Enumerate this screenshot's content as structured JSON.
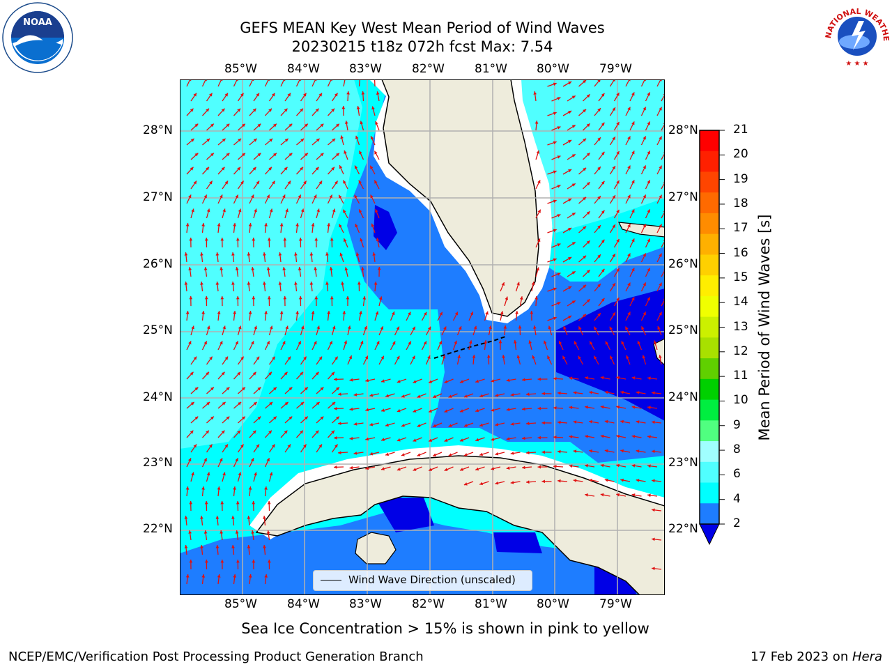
{
  "title": {
    "line1": "GEFS MEAN Key West Mean Period of Wind Waves",
    "line2": "20230215 t18z 072h fcst   Max: 7.54"
  },
  "logos": {
    "left": "NOAA",
    "right_text": "NATIONAL WEATHER SERVICE"
  },
  "map": {
    "lon_labels": [
      "85°W",
      "84°W",
      "83°W",
      "82°W",
      "81°W",
      "80°W",
      "79°W"
    ],
    "lat_labels": [
      "28°N",
      "27°N",
      "26°N",
      "25°N",
      "24°N",
      "23°N",
      "22°N"
    ],
    "extent": {
      "lon_min": -86.0,
      "lon_max": -78.3,
      "lat_min": 21.0,
      "lat_max": 28.8
    },
    "colors": {
      "land": "#eeecdc",
      "c2_4": "#1e7dff",
      "c4_6": "#00ffff",
      "c6_8": "#50ffff",
      "lt2": "#0000e6",
      "arrow": "#e01010",
      "grid": "#b0b0b0"
    }
  },
  "legend": {
    "label": "Wind Wave Direction (unscaled)"
  },
  "colorbar": {
    "title": "Mean Period of Wind Waves [s]",
    "ticks": [
      "21",
      "20",
      "19",
      "18",
      "17",
      "16",
      "15",
      "14",
      "13",
      "12",
      "11",
      "10",
      "9",
      "8",
      "6",
      "4",
      "2"
    ],
    "colors": [
      "#ff0000",
      "#ff2000",
      "#ff4500",
      "#ff6a00",
      "#ff8c00",
      "#ffb000",
      "#ffd000",
      "#ffee00",
      "#f0ff00",
      "#ccf000",
      "#a8e000",
      "#60d000",
      "#00d000",
      "#00ee40",
      "#50ff80",
      "#a0ffff",
      "#50ffff",
      "#00ffff",
      "#1e7dff"
    ],
    "under_color": "#0000e6"
  },
  "note": "Sea Ice Concentration > 15% is shown in pink to yellow",
  "footer": {
    "left": "NCEP/EMC/Verification Post Processing Product Generation Branch",
    "right_prefix": "17 Feb 2023 on ",
    "right_host": "Hera"
  }
}
